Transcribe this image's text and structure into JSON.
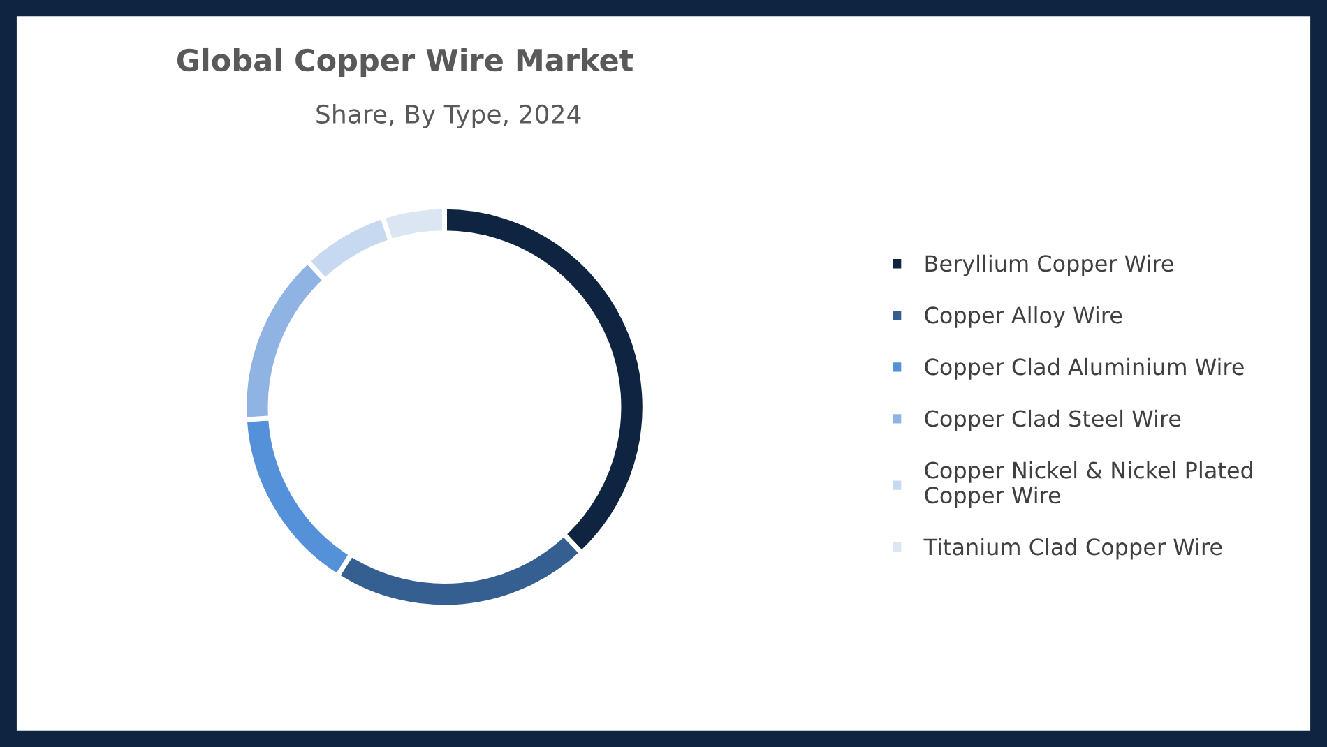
{
  "chart_data": {
    "type": "donut",
    "title": "Global Copper Wire Market",
    "subtitle": "Share, By Type, 2024",
    "categories": [
      "Beryllium Copper Wire",
      "Copper Alloy Wire",
      "Copper Clad Aluminium Wire",
      "Copper Clad Steel Wire",
      "Copper Nickel & Nickel Plated Copper Wire",
      "Titanium Clad Copper Wire"
    ],
    "values": [
      38,
      21,
      15,
      14,
      7,
      5
    ],
    "colors": [
      "#0f2440",
      "#355f91",
      "#5591d8",
      "#8fb4e3",
      "#c6d9f1",
      "#dce6f2"
    ],
    "legend": "right"
  }
}
